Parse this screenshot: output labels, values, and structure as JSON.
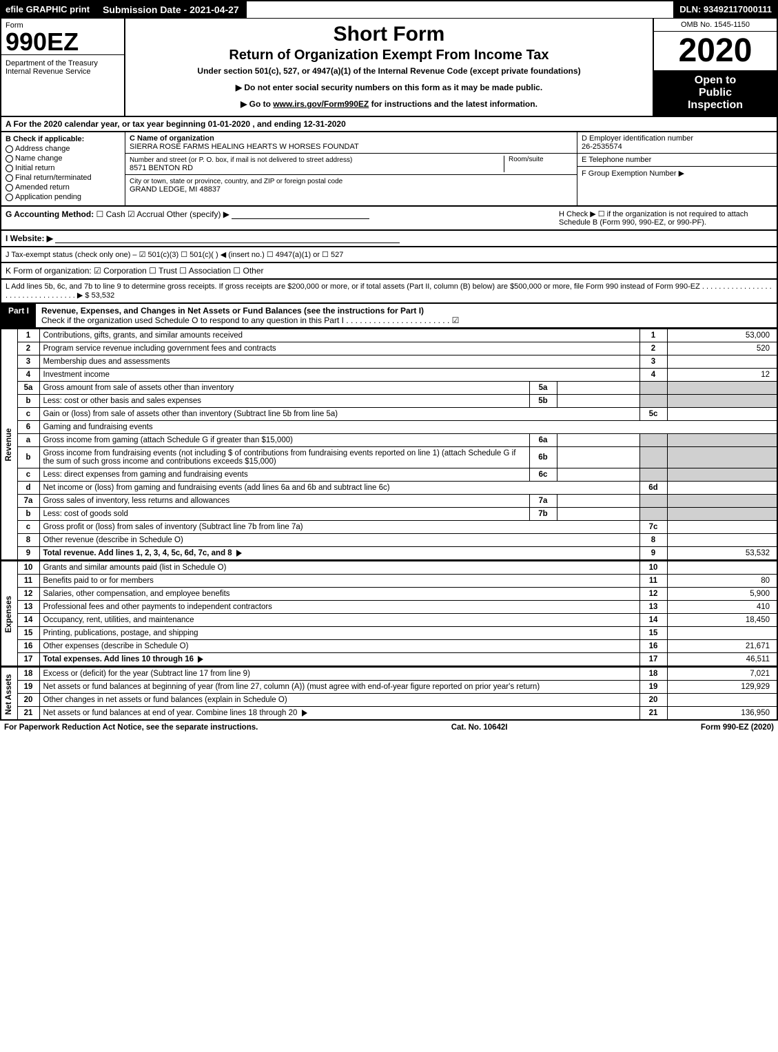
{
  "topbar": {
    "efile": "efile GRAPHIC print",
    "submission": "Submission Date - 2021-04-27",
    "dln": "DLN: 93492117000111"
  },
  "header": {
    "form_word": "Form",
    "form_num": "990EZ",
    "dept1": "Department of the Treasury",
    "dept2": "Internal Revenue Service",
    "title1": "Short Form",
    "title2": "Return of Organization Exempt From Income Tax",
    "subtitle": "Under section 501(c), 527, or 4947(a)(1) of the Internal Revenue Code (except private foundations)",
    "note1": "▶ Do not enter social security numbers on this form as it may be made public.",
    "note2_pre": "▶ Go to ",
    "note2_link": "www.irs.gov/Form990EZ",
    "note2_post": " for instructions and the latest information.",
    "omb": "OMB No. 1545-1150",
    "year": "2020",
    "open1": "Open to",
    "open2": "Public",
    "open3": "Inspection"
  },
  "period": "A For the 2020 calendar year, or tax year beginning 01-01-2020 , and ending 12-31-2020",
  "boxB": {
    "label": "B  Check if applicable:",
    "items": [
      "Address change",
      "Name change",
      "Initial return",
      "Final return/terminated",
      "Amended return",
      "Application pending"
    ]
  },
  "boxC": {
    "label": "C Name of organization",
    "name": "SIERRA ROSE FARMS HEALING HEARTS W HORSES FOUNDAT",
    "street_label": "Number and street (or P. O. box, if mail is not delivered to street address)",
    "room_label": "Room/suite",
    "street": "8571 BENTON RD",
    "city_label": "City or town, state or province, country, and ZIP or foreign postal code",
    "city": "GRAND LEDGE, MI  48837"
  },
  "boxD": {
    "label": "D Employer identification number",
    "value": "26-2535574"
  },
  "boxE": {
    "label": "E Telephone number",
    "value": ""
  },
  "boxF": {
    "label": "F Group Exemption Number  ▶",
    "value": ""
  },
  "lineG": {
    "label": "G Accounting Method:",
    "opts": "☐ Cash   ☑ Accrual   Other (specify) ▶"
  },
  "lineH": {
    "text": "H   Check ▶  ☐  if the organization is not required to attach Schedule B (Form 990, 990-EZ, or 990-PF)."
  },
  "lineI": {
    "label": "I Website: ▶"
  },
  "lineJ": {
    "text": "J Tax-exempt status (check only one) – ☑ 501(c)(3)  ☐ 501(c)(  ) ◀ (insert no.)  ☐ 4947(a)(1) or  ☐ 527"
  },
  "lineK": {
    "text": "K Form of organization:   ☑ Corporation   ☐ Trust   ☐ Association   ☐ Other"
  },
  "lineL": {
    "text": "L Add lines 5b, 6c, and 7b to line 9 to determine gross receipts. If gross receipts are $200,000 or more, or if total assets (Part II, column (B) below) are $500,000 or more, file Form 990 instead of Form 990-EZ . . . . . . . . . . . . . . . . . . . . . . . . . . . . . . . . . . ▶ $ 53,532"
  },
  "partI": {
    "label": "Part I",
    "title": "Revenue, Expenses, and Changes in Net Assets or Fund Balances (see the instructions for Part I)",
    "check": "Check if the organization used Schedule O to respond to any question in this Part I . . . . . . . . . . . . . . . . . . . . . . . ☑"
  },
  "sections": {
    "revenue": "Revenue",
    "expenses": "Expenses",
    "netassets": "Net Assets"
  },
  "lines": [
    {
      "n": "1",
      "desc": "Contributions, gifts, grants, and similar amounts received",
      "rn": "1",
      "val": "53,000"
    },
    {
      "n": "2",
      "desc": "Program service revenue including government fees and contracts",
      "rn": "2",
      "val": "520"
    },
    {
      "n": "3",
      "desc": "Membership dues and assessments",
      "rn": "3",
      "val": ""
    },
    {
      "n": "4",
      "desc": "Investment income",
      "rn": "4",
      "val": "12"
    },
    {
      "n": "5a",
      "desc": "Gross amount from sale of assets other than inventory",
      "sub": "5a",
      "subval": "",
      "shade": true
    },
    {
      "n": "b",
      "desc": "Less: cost or other basis and sales expenses",
      "sub": "5b",
      "subval": "",
      "shade": true
    },
    {
      "n": "c",
      "desc": "Gain or (loss) from sale of assets other than inventory (Subtract line 5b from line 5a)",
      "rn": "5c",
      "val": ""
    },
    {
      "n": "6",
      "desc": "Gaming and fundraising events",
      "plain": true
    },
    {
      "n": "a",
      "desc": "Gross income from gaming (attach Schedule G if greater than $15,000)",
      "sub": "6a",
      "subval": "",
      "shade": true
    },
    {
      "n": "b",
      "desc": "Gross income from fundraising events (not including $                     of contributions from fundraising events reported on line 1) (attach Schedule G if the sum of such gross income and contributions exceeds $15,000)",
      "sub": "6b",
      "subval": "",
      "shade": true
    },
    {
      "n": "c",
      "desc": "Less: direct expenses from gaming and fundraising events",
      "sub": "6c",
      "subval": "",
      "shade": true
    },
    {
      "n": "d",
      "desc": "Net income or (loss) from gaming and fundraising events (add lines 6a and 6b and subtract line 6c)",
      "rn": "6d",
      "val": ""
    },
    {
      "n": "7a",
      "desc": "Gross sales of inventory, less returns and allowances",
      "sub": "7a",
      "subval": "",
      "shade": true
    },
    {
      "n": "b",
      "desc": "Less: cost of goods sold",
      "sub": "7b",
      "subval": "",
      "shade": true
    },
    {
      "n": "c",
      "desc": "Gross profit or (loss) from sales of inventory (Subtract line 7b from line 7a)",
      "rn": "7c",
      "val": ""
    },
    {
      "n": "8",
      "desc": "Other revenue (describe in Schedule O)",
      "rn": "8",
      "val": ""
    },
    {
      "n": "9",
      "desc": "Total revenue. Add lines 1, 2, 3, 4, 5c, 6d, 7c, and 8",
      "rn": "9",
      "val": "53,532",
      "bold": true,
      "arrow": true
    }
  ],
  "exp_lines": [
    {
      "n": "10",
      "desc": "Grants and similar amounts paid (list in Schedule O)",
      "rn": "10",
      "val": ""
    },
    {
      "n": "11",
      "desc": "Benefits paid to or for members",
      "rn": "11",
      "val": "80"
    },
    {
      "n": "12",
      "desc": "Salaries, other compensation, and employee benefits",
      "rn": "12",
      "val": "5,900"
    },
    {
      "n": "13",
      "desc": "Professional fees and other payments to independent contractors",
      "rn": "13",
      "val": "410"
    },
    {
      "n": "14",
      "desc": "Occupancy, rent, utilities, and maintenance",
      "rn": "14",
      "val": "18,450"
    },
    {
      "n": "15",
      "desc": "Printing, publications, postage, and shipping",
      "rn": "15",
      "val": ""
    },
    {
      "n": "16",
      "desc": "Other expenses (describe in Schedule O)",
      "rn": "16",
      "val": "21,671"
    },
    {
      "n": "17",
      "desc": "Total expenses. Add lines 10 through 16",
      "rn": "17",
      "val": "46,511",
      "bold": true,
      "arrow": true
    }
  ],
  "na_lines": [
    {
      "n": "18",
      "desc": "Excess or (deficit) for the year (Subtract line 17 from line 9)",
      "rn": "18",
      "val": "7,021"
    },
    {
      "n": "19",
      "desc": "Net assets or fund balances at beginning of year (from line 27, column (A)) (must agree with end-of-year figure reported on prior year's return)",
      "rn": "19",
      "val": "129,929"
    },
    {
      "n": "20",
      "desc": "Other changes in net assets or fund balances (explain in Schedule O)",
      "rn": "20",
      "val": ""
    },
    {
      "n": "21",
      "desc": "Net assets or fund balances at end of year. Combine lines 18 through 20",
      "rn": "21",
      "val": "136,950",
      "arrow": true
    }
  ],
  "footer": {
    "left": "For Paperwork Reduction Act Notice, see the separate instructions.",
    "mid": "Cat. No. 10642I",
    "right": "Form 990-EZ (2020)"
  }
}
